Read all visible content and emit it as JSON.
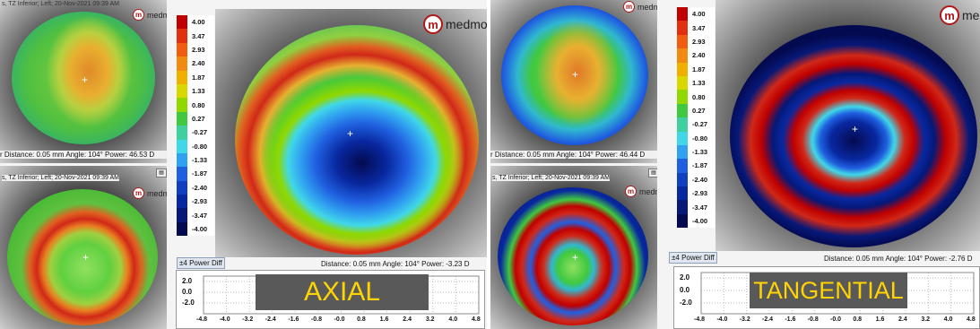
{
  "scale": [
    "4.00",
    "3.47",
    "2.93",
    "2.40",
    "1.87",
    "1.33",
    "0.80",
    "0.27",
    "-0.27",
    "-0.80",
    "-1.33",
    "-1.87",
    "-2.40",
    "-2.93",
    "-3.47",
    "-4.00"
  ],
  "scale_colors": [
    "#c00000",
    "#e03010",
    "#f05c10",
    "#f08a10",
    "#f0b000",
    "#d8d800",
    "#90d800",
    "#40c840",
    "#40d0a0",
    "#40d8e8",
    "#30a0f0",
    "#2060e0",
    "#1040c0",
    "#0828a0",
    "#061878",
    "#040a50"
  ],
  "logo_text": "medmont",
  "logo_glyph": "m",
  "power_diff_label": "±4 Power Diff",
  "graph": {
    "y_ticks": [
      "2.0",
      "0.0",
      "-2.0"
    ],
    "x_ticks": [
      "-4.8",
      "-4.0",
      "-3.2",
      "-2.4",
      "-1.6",
      "-0.8",
      "-0.0",
      "0.8",
      "1.6",
      "2.4",
      "3.2",
      "4.0",
      "4.8"
    ]
  },
  "left": {
    "top_header": "s, TZ Inferior; Left; 20-Nov-2021 09:39 AM",
    "top_status": "r  Distance: 0.05 mm   Angle: 104°   Power:  46.53 D",
    "bottom_header": "s, TZ Inferior; Left; 20-Nov-2021 09:39 AM",
    "big_status": "Distance: 0.05 mm   Angle: 104°   Power:  -3.23 D",
    "label": "AXIAL"
  },
  "right": {
    "top_status": "r  Distance: 0.05 mm   Angle: 104°   Power:  46.44 D",
    "bottom_header": "s, TZ Inferior; Left; 20-Nov-2021 09:39 AM",
    "big_status": "Distance: 0.05 mm   Angle: 104°   Power:  -2.76 D",
    "label": "TANGENTIAL"
  }
}
